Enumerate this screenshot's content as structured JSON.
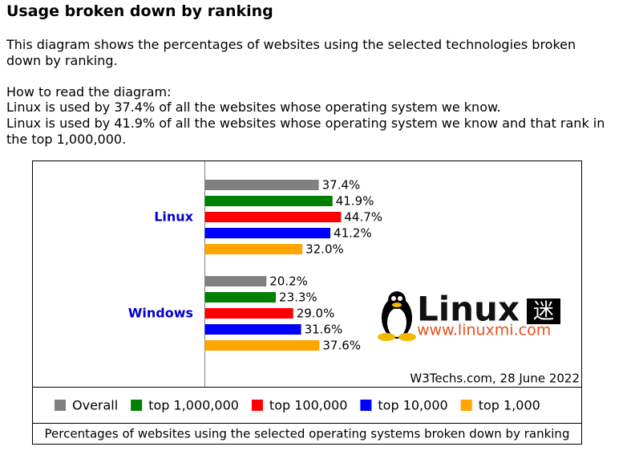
{
  "heading": "Usage broken down by ranking",
  "intro": "This diagram shows the percentages of websites using the selected technologies broken down by ranking.",
  "howto": [
    "How to read the diagram:",
    "Linux is used by 37.4% of all the websites whose operating system we know.",
    "Linux is used by 41.9% of all the websites whose operating system we know and that rank in the top 1,000,000."
  ],
  "chart_data": {
    "type": "hbar",
    "categories": [
      "Linux",
      "Windows"
    ],
    "series": [
      {
        "name": "Overall",
        "color": "#808080",
        "values": [
          37.4,
          20.2
        ],
        "value_labels": [
          "37.4%",
          "20.2%"
        ]
      },
      {
        "name": "top 1,000,000",
        "color": "#008000",
        "values": [
          41.9,
          23.3
        ],
        "value_labels": [
          "41.9%",
          "23.3%"
        ]
      },
      {
        "name": "top 100,000",
        "color": "#ff0000",
        "values": [
          44.7,
          29.0
        ],
        "value_labels": [
          "44.7%",
          "29.0%"
        ]
      },
      {
        "name": "top 10,000",
        "color": "#0000ff",
        "values": [
          41.2,
          31.6
        ],
        "value_labels": [
          "41.2%",
          "31.6%"
        ]
      },
      {
        "name": "top 1,000",
        "color": "#ffa500",
        "values": [
          32.0,
          37.6
        ],
        "value_labels": [
          "32.0%",
          "37.6%"
        ]
      }
    ],
    "xlim": [
      0,
      100
    ],
    "credit": "W3Techs.com, 28 June 2022",
    "caption": "Percentages of websites using the selected operating systems broken down by ranking",
    "watermark": {
      "brand": "Linux",
      "glyph": "迷",
      "url": "www.linuxmi.com"
    }
  }
}
